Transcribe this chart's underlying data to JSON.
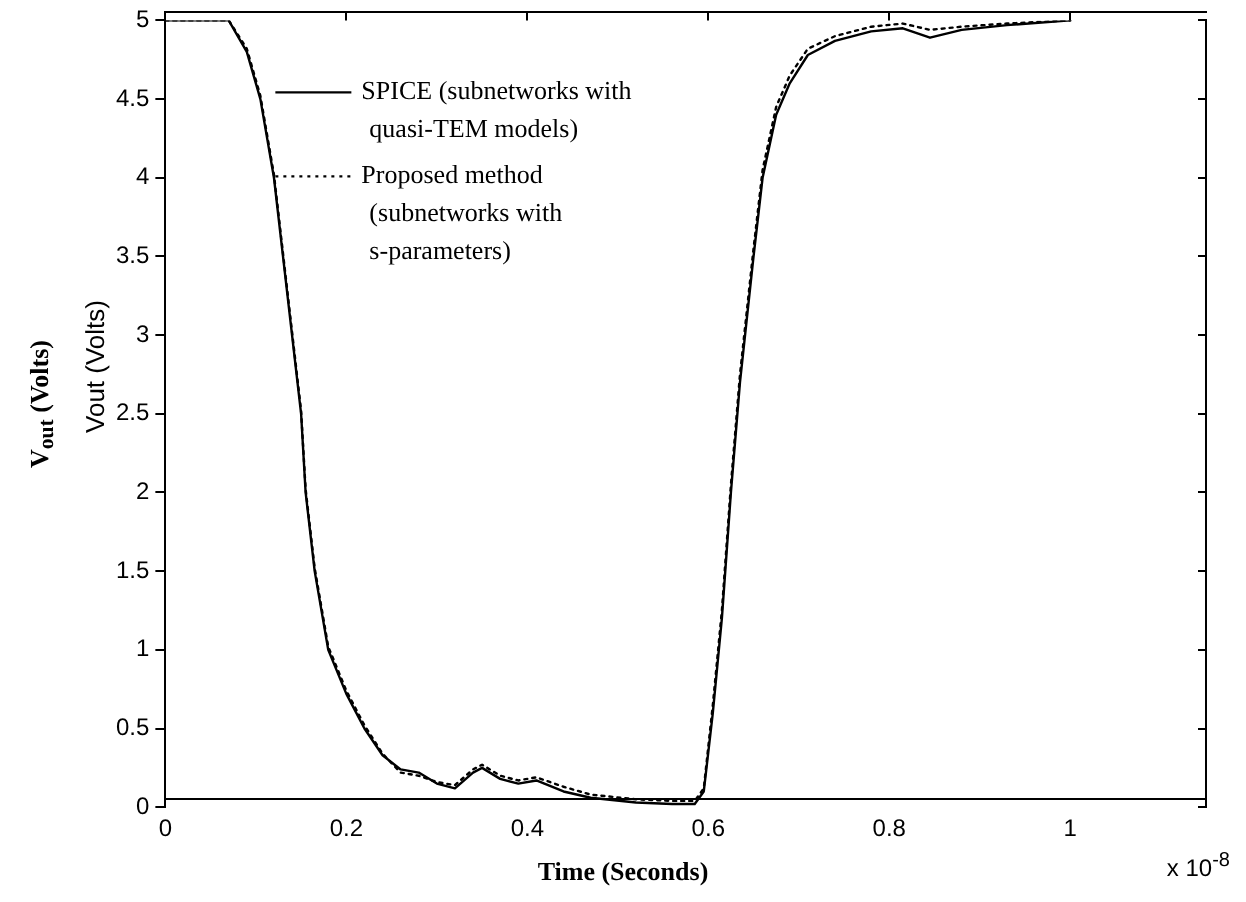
{
  "chart_data": {
    "type": "line",
    "xlabel": "Time (Seconds)",
    "ylabel": "V$_{out}$ (Volts)",
    "annotations": [
      "Vout (Volts)",
      "x 10$^{-8}$"
    ],
    "xlim": [
      0,
      1.15
    ],
    "xticks": [
      0,
      0.2,
      0.4,
      0.6,
      0.8,
      1
    ],
    "ylim": [
      0,
      5
    ],
    "yticks": [
      0,
      0.5,
      1,
      1.5,
      2,
      2.5,
      3,
      3.5,
      4,
      4.5,
      5
    ],
    "grid": false,
    "legend": "top left",
    "marker": "none",
    "series": [
      {
        "name": "SPICE (subnetworks with quasi-TEM models)",
        "color": "#000000",
        "line_style": "solid",
        "x": [
          0,
          0.07,
          0.09,
          0.105,
          0.12,
          0.13,
          0.14,
          0.15,
          0.155,
          0.165,
          0.18,
          0.2,
          0.22,
          0.24,
          0.26,
          0.28,
          0.3,
          0.32,
          0.34,
          0.35,
          0.37,
          0.39,
          0.41,
          0.44,
          0.47,
          0.52,
          0.56,
          0.585,
          0.595,
          0.605,
          0.615,
          0.625,
          0.635,
          0.65,
          0.66,
          0.675,
          0.69,
          0.71,
          0.74,
          0.78,
          0.815,
          0.845,
          0.88,
          0.93,
          1
        ],
        "values": [
          5,
          5,
          4.8,
          4.5,
          4,
          3.5,
          3,
          2.5,
          2,
          1.5,
          1,
          0.72,
          0.5,
          0.33,
          0.24,
          0.22,
          0.15,
          0.12,
          0.22,
          0.25,
          0.18,
          0.15,
          0.17,
          0.1,
          0.06,
          0.03,
          0.02,
          0.02,
          0.1,
          0.6,
          1.2,
          2,
          2.7,
          3.5,
          4,
          4.4,
          4.6,
          4.78,
          4.87,
          4.93,
          4.95,
          4.89,
          4.94,
          4.97,
          5
        ]
      },
      {
        "name": "Proposed method (subnetworks with s-parameters)",
        "color": "#000000",
        "line_style": "dotted",
        "x": [
          0,
          0.07,
          0.09,
          0.105,
          0.12,
          0.13,
          0.14,
          0.15,
          0.155,
          0.165,
          0.18,
          0.2,
          0.22,
          0.24,
          0.26,
          0.28,
          0.3,
          0.32,
          0.34,
          0.35,
          0.37,
          0.39,
          0.41,
          0.44,
          0.47,
          0.52,
          0.56,
          0.585,
          0.595,
          0.605,
          0.615,
          0.625,
          0.635,
          0.65,
          0.66,
          0.675,
          0.69,
          0.71,
          0.74,
          0.78,
          0.815,
          0.845,
          0.88,
          0.93,
          1
        ],
        "values": [
          5,
          5,
          4.82,
          4.52,
          4.02,
          3.52,
          3.02,
          2.52,
          2.02,
          1.52,
          1.02,
          0.74,
          0.52,
          0.34,
          0.22,
          0.2,
          0.16,
          0.14,
          0.24,
          0.27,
          0.2,
          0.17,
          0.19,
          0.13,
          0.08,
          0.05,
          0.04,
          0.04,
          0.12,
          0.65,
          1.25,
          2.05,
          2.75,
          3.55,
          4.05,
          4.45,
          4.65,
          4.82,
          4.9,
          4.96,
          4.98,
          4.94,
          4.96,
          4.98,
          5
        ]
      }
    ]
  }
}
